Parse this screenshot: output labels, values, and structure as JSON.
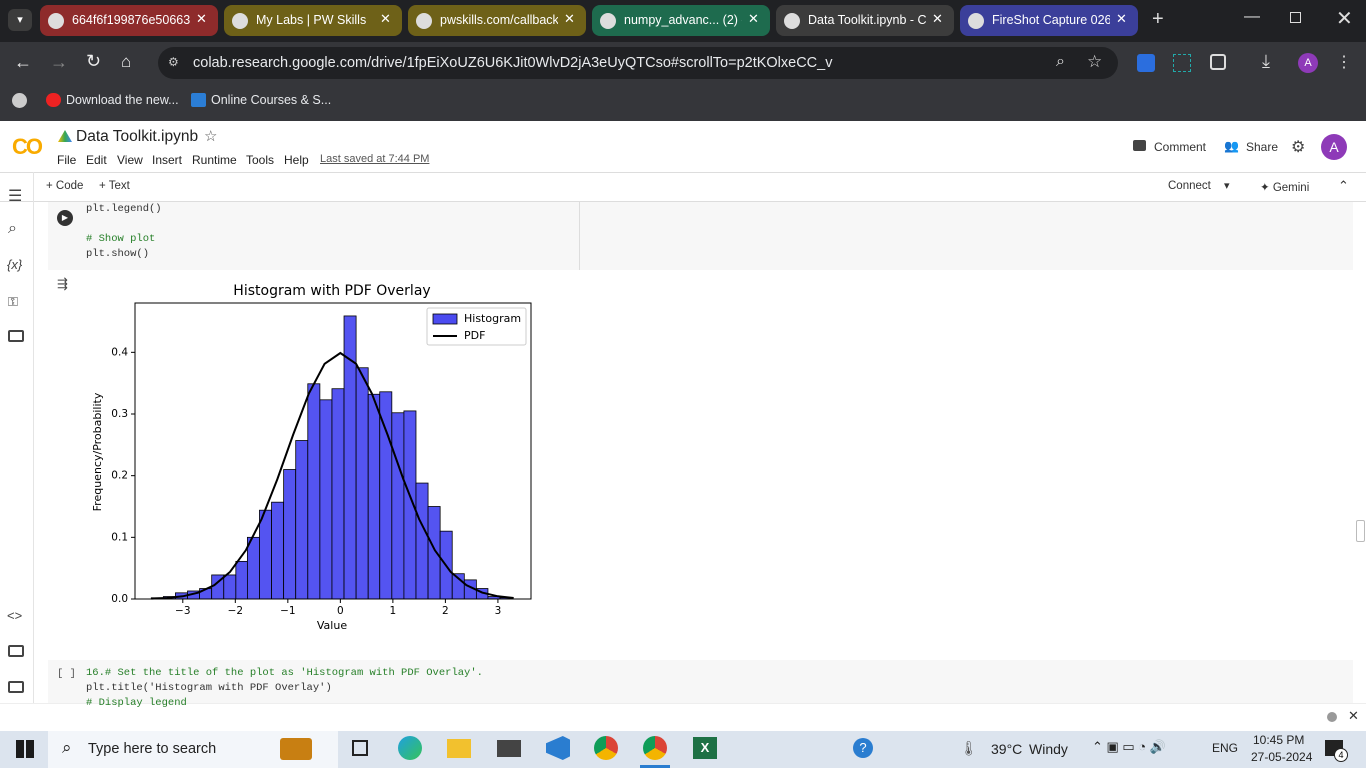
{
  "browser": {
    "tabs": [
      "664f6f199876e50663",
      "My Labs | PW Skills",
      "pwskills.com/callback",
      "numpy_advanc... (2) -",
      "Data Toolkit.ipynb - C",
      "FireShot Capture 026"
    ],
    "url": "colab.research.google.com/drive/1fpEiXoUZ6U6KJit0WlvD2jA3eUyQTCso#scrollTo=p2tKOlxeCC_v",
    "bookmarks": [
      "Download the new...",
      "Online Courses & S..."
    ],
    "profile": "A"
  },
  "header": {
    "logo": "CO",
    "title": "Data Toolkit.ipynb",
    "menu": [
      "File",
      "Edit",
      "View",
      "Insert",
      "Runtime",
      "Tools",
      "Help"
    ],
    "last_saved": "Last saved at 7:44 PM",
    "comment": "Comment",
    "share": "Share",
    "avatar": "A"
  },
  "toolbar": {
    "code": "+ Code",
    "text": "+ Text",
    "connect": "Connect",
    "gemini": "✦ Gemini"
  },
  "sidebar": {
    "variables": "{x}"
  },
  "cells": [
    {
      "lines": [
        "plt.legend()",
        "# Show plot",
        "plt.show()"
      ]
    },
    {
      "bracket": "[ ]",
      "lines": [
        "16.# Set the title of the plot as 'Histogram with PDF Overlay'.",
        "plt.title('Histogram with PDF Overlay')",
        "# Display legend"
      ]
    }
  ],
  "chart_data": {
    "type": "histogram",
    "title": "Histogram with PDF Overlay",
    "xlabel": "Value",
    "ylabel": "Frequency/Probability",
    "name": "Histogram",
    "color": "#4b4bf0",
    "bins": [
      -3.6,
      -3.37,
      -3.14,
      -2.91,
      -2.68,
      -2.45,
      -2.22,
      -1.99,
      -1.77,
      -1.54,
      -1.31,
      -1.08,
      -0.85,
      -0.62,
      -0.39,
      -0.16,
      0.07,
      0.3,
      0.53,
      0.75,
      0.98,
      1.21,
      1.44,
      1.67,
      1.9,
      2.13,
      2.36,
      2.59,
      2.81,
      3.04,
      3.27
    ],
    "values": [
      0.002,
      0.004,
      0.01,
      0.013,
      0.017,
      0.039,
      0.039,
      0.061,
      0.1,
      0.144,
      0.157,
      0.21,
      0.257,
      0.349,
      0.323,
      0.341,
      0.459,
      0.375,
      0.332,
      0.336,
      0.302,
      0.305,
      0.188,
      0.15,
      0.11,
      0.041,
      0.031,
      0.017,
      0.004,
      0.002
    ],
    "pdf": {
      "name": "PDF",
      "color": "#000000",
      "x": [
        -3.6,
        -3.3,
        -3.0,
        -2.7,
        -2.4,
        -2.1,
        -1.8,
        -1.5,
        -1.2,
        -0.9,
        -0.6,
        -0.3,
        0,
        0.3,
        0.6,
        0.9,
        1.2,
        1.5,
        1.8,
        2.1,
        2.4,
        2.7,
        3.0,
        3.3
      ],
      "values": [
        0.0006,
        0.0017,
        0.0044,
        0.0104,
        0.0224,
        0.044,
        0.079,
        0.1295,
        0.1942,
        0.2661,
        0.3332,
        0.3814,
        0.3989,
        0.3814,
        0.3332,
        0.2661,
        0.1942,
        0.1295,
        0.079,
        0.044,
        0.0224,
        0.0104,
        0.0044,
        0.0017
      ]
    },
    "xlim": [
      -3.91,
      3.63
    ],
    "ylim": [
      0,
      0.48
    ],
    "xticks": [
      {
        "value": -3,
        "label": "−3"
      },
      {
        "value": -2,
        "label": "−2"
      },
      {
        "value": -1,
        "label": "−1"
      },
      0,
      1,
      2,
      3
    ],
    "yticks": [
      {
        "value": 0,
        "label": "0.0"
      },
      0.1,
      0.2,
      0.3,
      0.4
    ],
    "legend": "upper right"
  },
  "taskbar": {
    "search": "Type here to search",
    "temperature": "39°C",
    "weather": "Windy",
    "lang": "ENG",
    "time": "10:45 PM",
    "date": "27-05-2024",
    "notifications": "4"
  }
}
